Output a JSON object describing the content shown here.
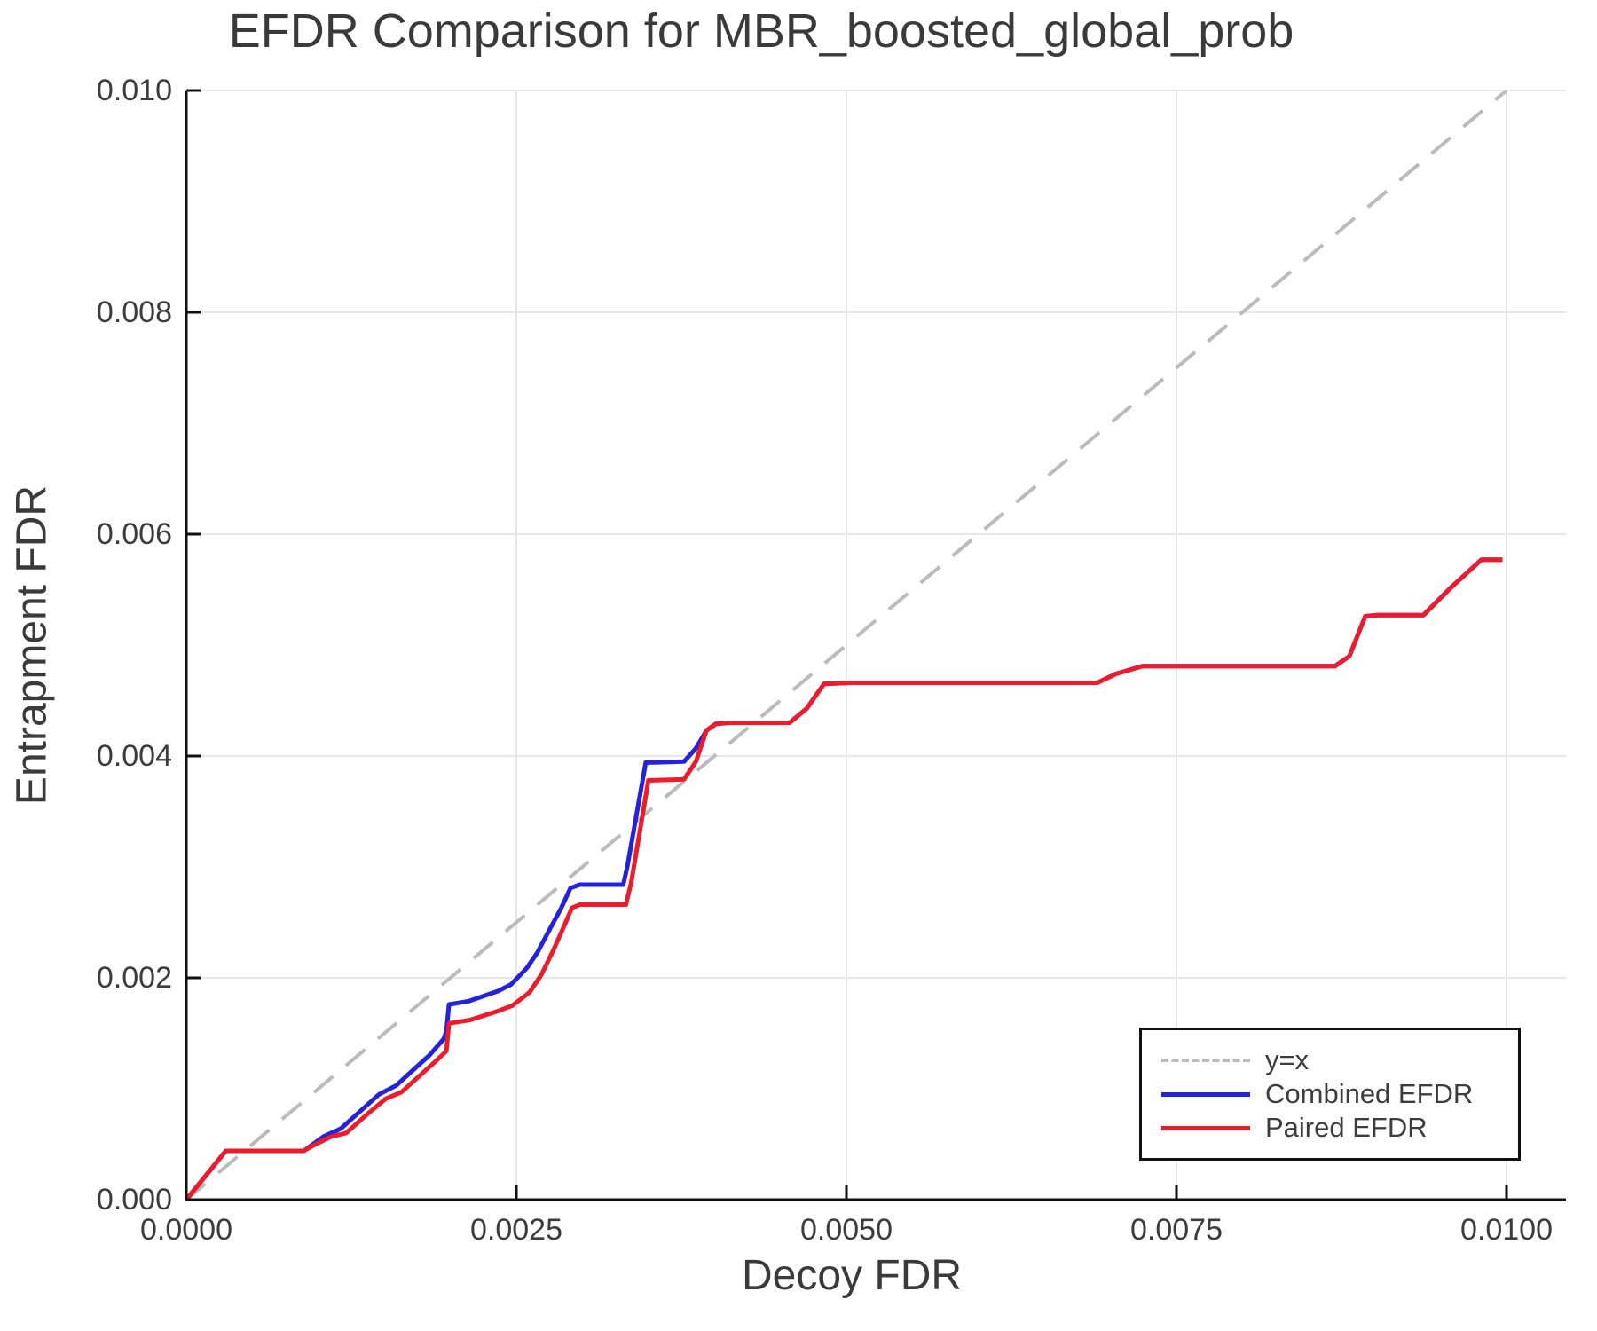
{
  "title": "EFDR Comparison for MBR_boosted_global_prob",
  "chart_data": {
    "type": "line",
    "title": "EFDR Comparison for MBR_boosted_global_prob",
    "xlabel": "Decoy FDR",
    "ylabel": "Entrapment FDR",
    "xlim": [
      0.0,
      0.01045
    ],
    "ylim": [
      0.0,
      0.01
    ],
    "grid": true,
    "legend_position": "lower right",
    "x_ticks": [
      0.0,
      0.0025,
      0.005,
      0.0075,
      0.01
    ],
    "x_tick_labels": [
      "0.0000",
      "0.0025",
      "0.0050",
      "0.0075",
      "0.0100"
    ],
    "y_ticks": [
      0.0,
      0.002,
      0.004,
      0.006,
      0.008,
      0.01
    ],
    "y_tick_labels": [
      "0.000",
      "0.002",
      "0.004",
      "0.006",
      "0.008",
      "0.010"
    ],
    "colors": {
      "grid": "#e7e7e7",
      "axis": "#111111",
      "text": "#3c3c3c"
    },
    "series": [
      {
        "name": "y=x",
        "style": "dashed",
        "color": "#bbbbbb",
        "width": 4,
        "points": [
          [
            0.0,
            0.0
          ],
          [
            0.01,
            0.01
          ]
        ]
      },
      {
        "name": "Combined EFDR",
        "style": "solid",
        "color": "#2323db",
        "width": 5,
        "points": [
          [
            0.0,
            0.0
          ],
          [
            0.0003,
            0.00044
          ],
          [
            0.00089,
            0.00044
          ],
          [
            0.00104,
            0.00057
          ],
          [
            0.00117,
            0.00064
          ],
          [
            0.00131,
            0.00079
          ],
          [
            0.00146,
            0.00095
          ],
          [
            0.00159,
            0.00103
          ],
          [
            0.00171,
            0.00116
          ],
          [
            0.00184,
            0.0013
          ],
          [
            0.00195,
            0.00145
          ],
          [
            0.00197,
            0.00152
          ],
          [
            0.00199,
            0.00176
          ],
          [
            0.00214,
            0.00179
          ],
          [
            0.00236,
            0.00188
          ],
          [
            0.00246,
            0.00194
          ],
          [
            0.00258,
            0.00209
          ],
          [
            0.00266,
            0.00223
          ],
          [
            0.00274,
            0.00241
          ],
          [
            0.00284,
            0.00263
          ],
          [
            0.00291,
            0.00281
          ],
          [
            0.00298,
            0.00284
          ],
          [
            0.00331,
            0.00284
          ],
          [
            0.00334,
            0.003
          ],
          [
            0.00348,
            0.00394
          ],
          [
            0.00377,
            0.00395
          ],
          [
            0.00386,
            0.00407
          ],
          [
            0.00394,
            0.00423
          ],
          [
            0.00401,
            0.00429
          ],
          [
            0.00411,
            0.0043
          ],
          [
            0.00457,
            0.0043
          ],
          [
            0.0047,
            0.00443
          ],
          [
            0.00483,
            0.00465
          ],
          [
            0.00502,
            0.00466
          ],
          [
            0.0069,
            0.00466
          ],
          [
            0.00704,
            0.00474
          ],
          [
            0.00724,
            0.00481
          ],
          [
            0.0087,
            0.00481
          ],
          [
            0.00881,
            0.0049
          ],
          [
            0.00893,
            0.00526
          ],
          [
            0.00902,
            0.00527
          ],
          [
            0.00937,
            0.00527
          ],
          [
            0.00958,
            0.00552
          ],
          [
            0.00981,
            0.00577
          ],
          [
            0.00997,
            0.00577
          ]
        ]
      },
      {
        "name": "Paired EFDR",
        "style": "solid",
        "color": "#ec1c2c",
        "width": 5,
        "points": [
          [
            0.0,
            0.0
          ],
          [
            0.0003,
            0.00044
          ],
          [
            0.00089,
            0.00044
          ],
          [
            0.00098,
            0.0005
          ],
          [
            0.0011,
            0.00057
          ],
          [
            0.00121,
            0.0006
          ],
          [
            0.00138,
            0.00078
          ],
          [
            0.00151,
            0.00091
          ],
          [
            0.00163,
            0.00097
          ],
          [
            0.00176,
            0.00111
          ],
          [
            0.0019,
            0.00126
          ],
          [
            0.00197,
            0.00134
          ],
          [
            0.00199,
            0.00159
          ],
          [
            0.00215,
            0.00162
          ],
          [
            0.00236,
            0.0017
          ],
          [
            0.00247,
            0.00175
          ],
          [
            0.0026,
            0.00187
          ],
          [
            0.00269,
            0.00203
          ],
          [
            0.00278,
            0.00225
          ],
          [
            0.00287,
            0.00249
          ],
          [
            0.00292,
            0.00263
          ],
          [
            0.00298,
            0.00266
          ],
          [
            0.00333,
            0.00266
          ],
          [
            0.00337,
            0.00286
          ],
          [
            0.0035,
            0.00378
          ],
          [
            0.00377,
            0.00379
          ],
          [
            0.00386,
            0.00395
          ],
          [
            0.00394,
            0.00423
          ],
          [
            0.00401,
            0.00429
          ],
          [
            0.00411,
            0.0043
          ],
          [
            0.00457,
            0.0043
          ],
          [
            0.0047,
            0.00443
          ],
          [
            0.00483,
            0.00465
          ],
          [
            0.00502,
            0.00466
          ],
          [
            0.0069,
            0.00466
          ],
          [
            0.00704,
            0.00474
          ],
          [
            0.00724,
            0.00481
          ],
          [
            0.0087,
            0.00481
          ],
          [
            0.00881,
            0.0049
          ],
          [
            0.00893,
            0.00526
          ],
          [
            0.00902,
            0.00527
          ],
          [
            0.00937,
            0.00527
          ],
          [
            0.00958,
            0.00552
          ],
          [
            0.00981,
            0.00577
          ],
          [
            0.00997,
            0.00577
          ]
        ]
      }
    ]
  }
}
